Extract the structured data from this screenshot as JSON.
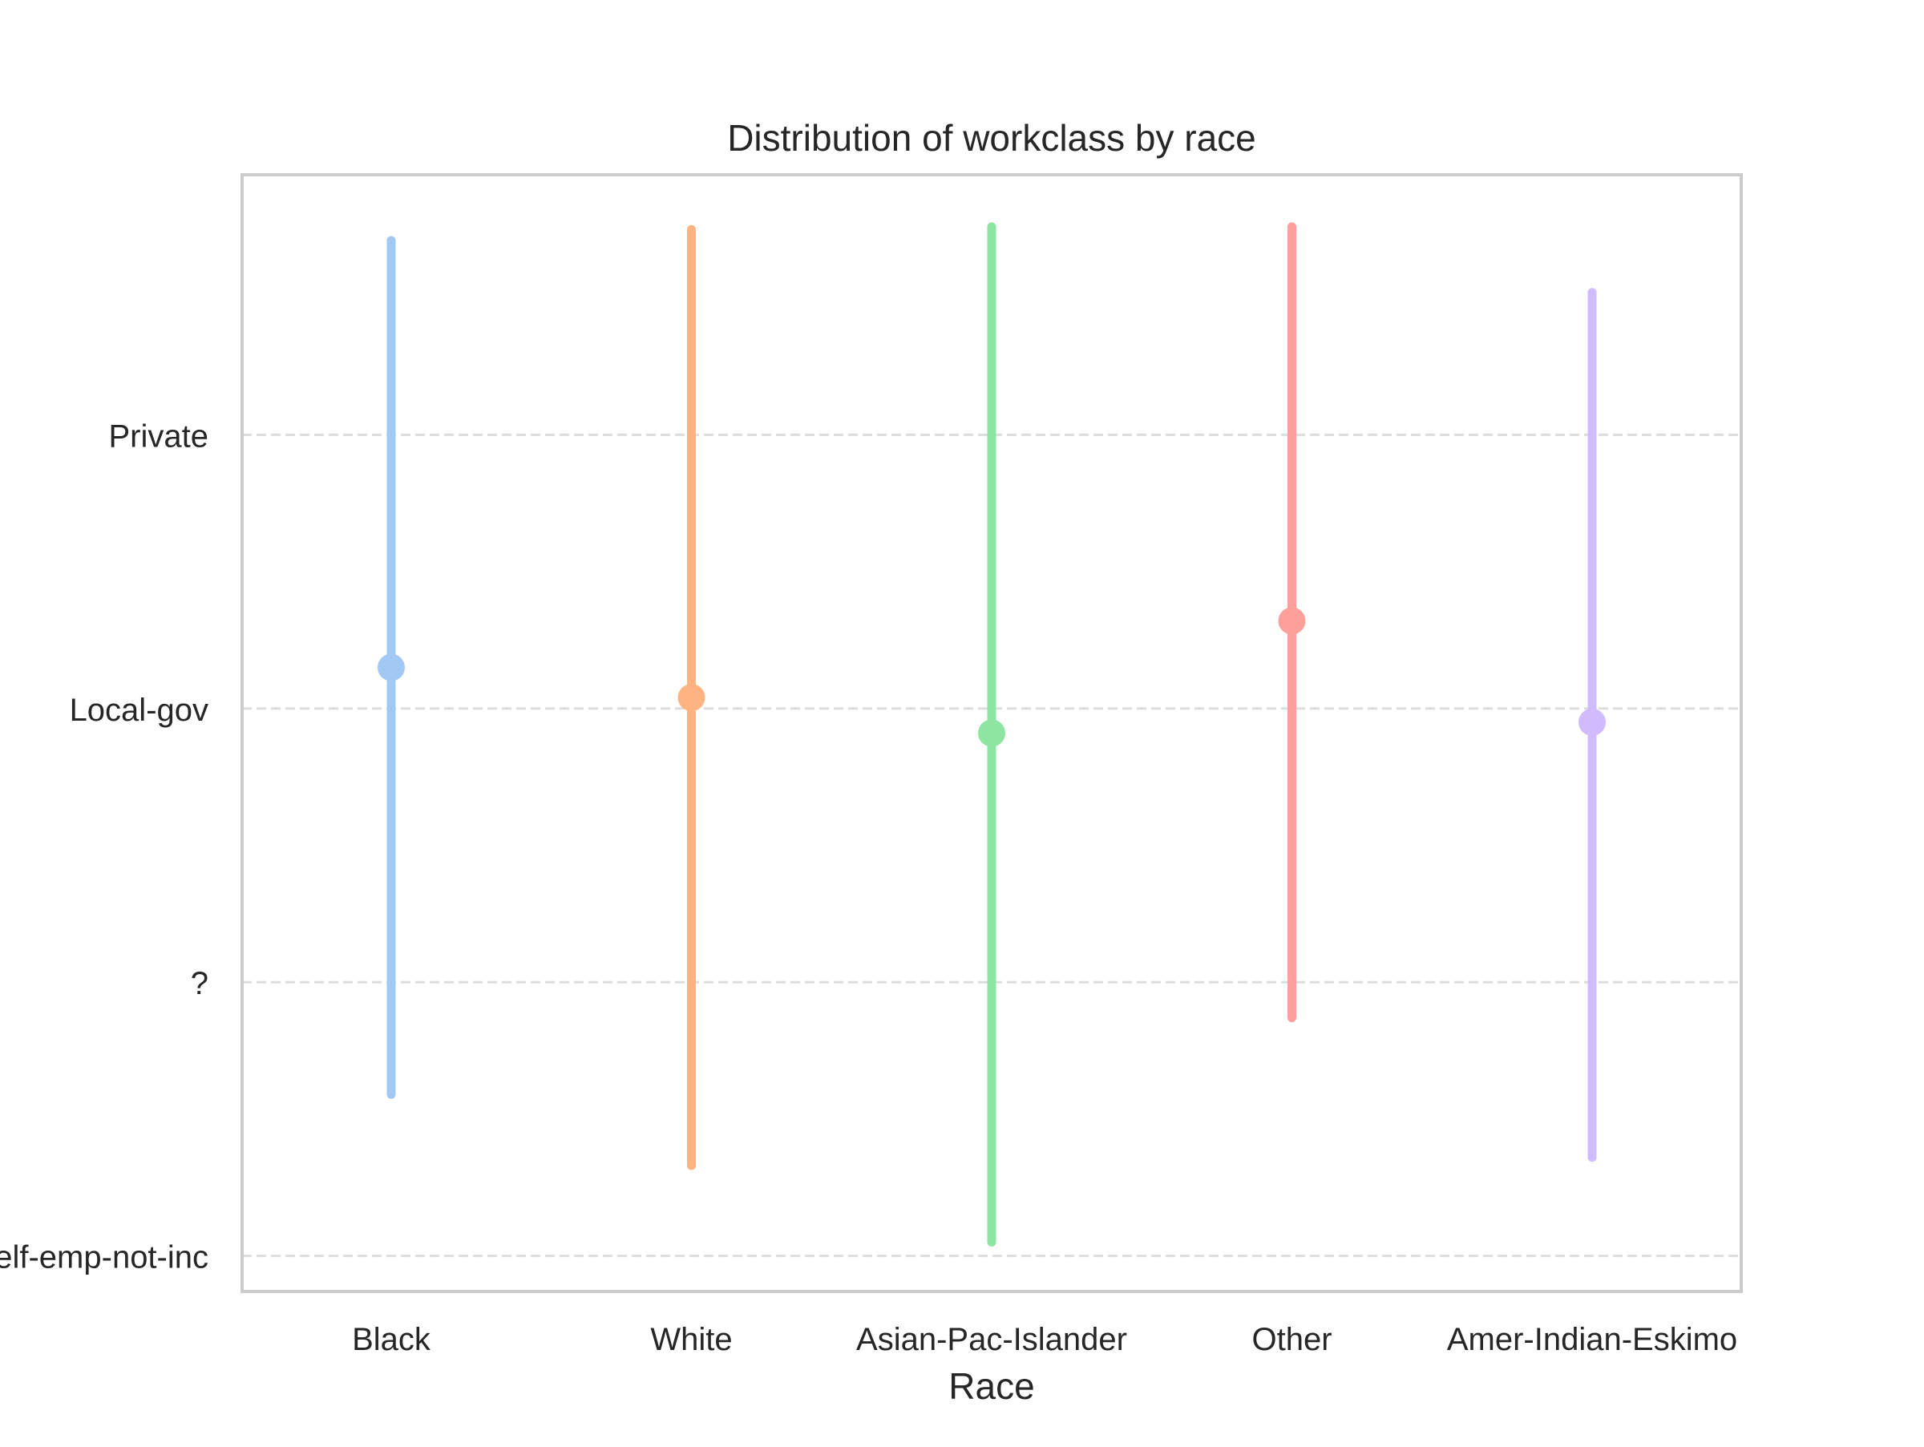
{
  "chart_data": {
    "type": "scatter",
    "title": "Distribution of workclass by race",
    "xlabel": "Race",
    "ylabel": "",
    "categories": [
      "Black",
      "White",
      "Asian-Pac-Islander",
      "Other",
      "Amer-Indian-Eskimo"
    ],
    "y_ticks": [
      {
        "value": 3,
        "label": "Private"
      },
      {
        "value": 2,
        "label": "Local-gov"
      },
      {
        "value": 1,
        "label": "?"
      },
      {
        "value": 0,
        "label": "Self-emp-not-inc"
      }
    ],
    "ylim": [
      -0.13,
      3.95
    ],
    "grid": "horizontal dashed",
    "series": [
      {
        "category": "Black",
        "center": 2.15,
        "low": 0.59,
        "high": 3.71,
        "color": "#a1c9f4"
      },
      {
        "category": "White",
        "center": 2.04,
        "low": 0.33,
        "high": 3.75,
        "color": "#ffb482"
      },
      {
        "category": "Asian-Pac-Islander",
        "center": 1.91,
        "low": 0.05,
        "high": 3.76,
        "color": "#8de5a1"
      },
      {
        "category": "Other",
        "center": 2.32,
        "low": 0.87,
        "high": 3.76,
        "color": "#ff9f9b"
      },
      {
        "category": "Amer-Indian-Eskimo",
        "center": 1.95,
        "low": 0.36,
        "high": 3.52,
        "color": "#d0bbff"
      }
    ]
  }
}
